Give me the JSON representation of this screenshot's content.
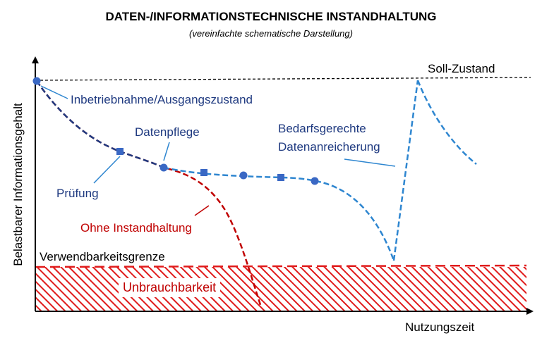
{
  "title": "DATEN-/INFORMATIONSTECHNISCHE INSTANDHALTUNG",
  "subtitle": "(vereinfachte schematische Darstellung)",
  "axes": {
    "y_label": "Belastbarer Informationsgehalt",
    "x_label": "Nutzungszeit"
  },
  "labels": {
    "soll": "Soll-Zustand",
    "start": "Inbetriebnahme/Ausgangszustand",
    "datenpflege": "Datenpflege",
    "pruefung": "Prüfung",
    "ohne": "Ohne Instandhaltung",
    "bedarf_line1": "Bedarfsgerechte",
    "bedarf_line2": "Datenanreicherung",
    "grenze": "Verwendbarkeitsgrenze",
    "unbrauch": "Unbrauchbarkeit"
  },
  "colors": {
    "navy": "#1f3a80",
    "blue_dashed": "#2e86d0",
    "red": "#c00000",
    "marker": "#3a68c4"
  },
  "markers": [
    {
      "type": "circle",
      "meaning": "Inbetriebnahme"
    },
    {
      "type": "square",
      "meaning": "Prüfung"
    },
    {
      "type": "circle",
      "meaning": "Datenpflege"
    },
    {
      "type": "square",
      "meaning": "Prüfung"
    },
    {
      "type": "circle",
      "meaning": "Datenpflege"
    },
    {
      "type": "square",
      "meaning": "Prüfung"
    },
    {
      "type": "circle",
      "meaning": "Datenpflege"
    }
  ]
}
